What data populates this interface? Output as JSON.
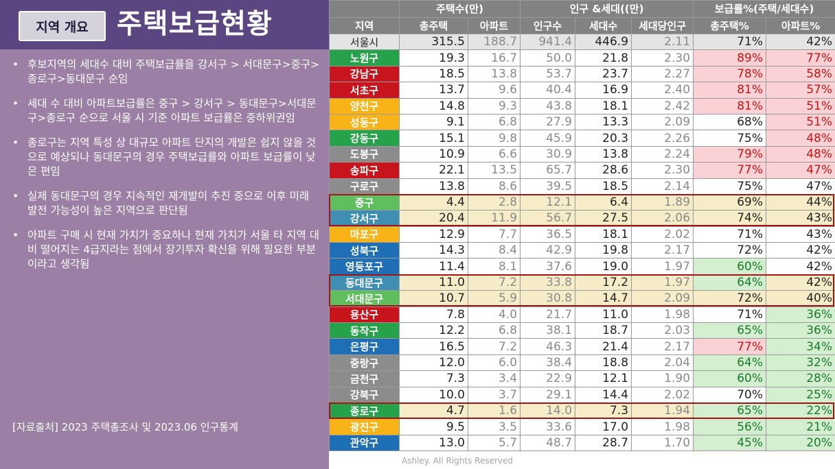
{
  "header": {
    "badge": "지역 개요",
    "title": "주택보급현황"
  },
  "bullets": [
    "후보지역의 세대수 대비 주택보급률을 강서구 > 서대문구>중구>종로구>동대문구 순임",
    "세대 수 대비 아파트보급률은 중구 > 강서구 > 동대문구>서대문구>종로구 순으로 서울 시 기준 아파트 보급률은 중하위권임",
    "종로구는 지역 특성 상 대규모 아파트 단지의 개발은 쉽지 않을 것으로 예상되나 동대문구의 경우 주택보급률와 아파트 보급률이 낮은 편임",
    "실제 동대문구의 경우 지속적인 재개발이 추진 중으로 이후 미래 발전 가능성이 높은 지역으로 판단됨",
    "아파트 구매 시 현재 가치가 중요하나 현재 가치가 서울 타 지역 대비 떨어지는 4급지라는 점에서 장기투자 확신을 위해 필요한 부분이라고 생각됨"
  ],
  "bullet_mark": "•",
  "source": "[자료출처] 2023 주택총조사 및 2023.06 인구통계",
  "watermark": "Ashley. All Rights Reserved",
  "table": {
    "groups": [
      "주택수(만)",
      "인구 &세대((만)",
      "보급률%(주택/세대수)"
    ],
    "columns": [
      "지역",
      "총주택",
      "아파트",
      "인구수",
      "세대수",
      "세대당인구",
      "총주택%",
      "아파트%"
    ],
    "rows": [
      {
        "region": "서울시",
        "color": "#e4e4e4",
        "v": [
          "315.5",
          "188.7",
          "941.4",
          "446.9",
          "2.11",
          "71%",
          "42%"
        ],
        "h": "",
        "t": "",
        "a": ""
      },
      {
        "region": "노원구",
        "color": "#25a24a",
        "v": [
          "19.3",
          "16.7",
          "50.0",
          "21.8",
          "2.30",
          "89%",
          "77%"
        ],
        "h": "",
        "t": "p",
        "a": "p"
      },
      {
        "region": "강남구",
        "color": "#c8141c",
        "v": [
          "18.5",
          "13.8",
          "53.7",
          "23.7",
          "2.27",
          "78%",
          "58%"
        ],
        "h": "",
        "t": "p",
        "a": "p"
      },
      {
        "region": "서초구",
        "color": "#c8141c",
        "v": [
          "13.7",
          "9.6",
          "40.4",
          "16.9",
          "2.40",
          "81%",
          "57%"
        ],
        "h": "",
        "t": "p",
        "a": "p"
      },
      {
        "region": "양천구",
        "color": "#f8b417",
        "v": [
          "14.8",
          "9.3",
          "43.8",
          "18.1",
          "2.42",
          "81%",
          "51%"
        ],
        "h": "",
        "t": "p",
        "a": "p"
      },
      {
        "region": "성동구",
        "color": "#f8b417",
        "v": [
          "9.1",
          "6.8",
          "27.9",
          "13.3",
          "2.09",
          "68%",
          "51%"
        ],
        "h": "",
        "t": "",
        "a": "p"
      },
      {
        "region": "강동구",
        "color": "#25a24a",
        "v": [
          "15.1",
          "9.8",
          "45.9",
          "20.3",
          "2.26",
          "75%",
          "48%"
        ],
        "h": "",
        "t": "",
        "a": "p"
      },
      {
        "region": "도봉구",
        "color": "#8c8c8c",
        "v": [
          "10.9",
          "6.6",
          "30.9",
          "13.8",
          "2.24",
          "79%",
          "48%"
        ],
        "h": "",
        "t": "p",
        "a": "p"
      },
      {
        "region": "송파구",
        "color": "#c8141c",
        "v": [
          "22.1",
          "13.5",
          "65.7",
          "28.6",
          "2.30",
          "77%",
          "47%"
        ],
        "h": "",
        "t": "p",
        "a": "p"
      },
      {
        "region": "구로구",
        "color": "#8c8c8c",
        "v": [
          "13.8",
          "8.6",
          "39.5",
          "18.5",
          "2.14",
          "75%",
          "47%"
        ],
        "h": "",
        "t": "",
        "a": ""
      },
      {
        "region": "중구",
        "color": "#5fbf5f",
        "v": [
          "4.4",
          "2.8",
          "12.1",
          "6.4",
          "1.89",
          "69%",
          "44%"
        ],
        "h": "1",
        "t": "",
        "a": ""
      },
      {
        "region": "강서구",
        "color": "#3f8fb3",
        "v": [
          "20.4",
          "11.9",
          "56.7",
          "27.5",
          "2.06",
          "74%",
          "43%"
        ],
        "h": "1",
        "t": "",
        "a": ""
      },
      {
        "region": "마포구",
        "color": "#f8b417",
        "v": [
          "12.9",
          "7.7",
          "36.5",
          "18.1",
          "2.02",
          "71%",
          "43%"
        ],
        "h": "",
        "t": "",
        "a": ""
      },
      {
        "region": "성북구",
        "color": "#1f6fb7",
        "v": [
          "14.3",
          "8.4",
          "42.9",
          "19.8",
          "2.17",
          "72%",
          "42%"
        ],
        "h": "",
        "t": "",
        "a": ""
      },
      {
        "region": "영등포구",
        "color": "#1f6fb7",
        "v": [
          "11.4",
          "8.1",
          "37.6",
          "19.0",
          "1.97",
          "60%",
          "42%"
        ],
        "h": "",
        "t": "g",
        "a": ""
      },
      {
        "region": "동대문구",
        "color": "#3f8fb3",
        "v": [
          "11.0",
          "7.2",
          "33.8",
          "17.2",
          "1.97",
          "64%",
          "42%"
        ],
        "h": "1",
        "t": "g",
        "a": ""
      },
      {
        "region": "서대문구",
        "color": "#5fbf5f",
        "v": [
          "10.7",
          "5.9",
          "30.8",
          "14.7",
          "2.09",
          "72%",
          "40%"
        ],
        "h": "1",
        "t": "",
        "a": ""
      },
      {
        "region": "용산구",
        "color": "#c8141c",
        "v": [
          "7.8",
          "4.0",
          "21.7",
          "11.0",
          "1.98",
          "71%",
          "36%"
        ],
        "h": "",
        "t": "",
        "a": "g"
      },
      {
        "region": "동작구",
        "color": "#25a24a",
        "v": [
          "12.2",
          "6.8",
          "38.1",
          "18.7",
          "2.03",
          "65%",
          "36%"
        ],
        "h": "",
        "t": "g",
        "a": "g"
      },
      {
        "region": "은평구",
        "color": "#1f6fb7",
        "v": [
          "16.5",
          "7.2",
          "46.3",
          "21.4",
          "2.17",
          "77%",
          "34%"
        ],
        "h": "",
        "t": "p",
        "a": "g"
      },
      {
        "region": "중랑구",
        "color": "#8c8c8c",
        "v": [
          "12.0",
          "6.0",
          "38.4",
          "18.8",
          "2.04",
          "64%",
          "32%"
        ],
        "h": "",
        "t": "g",
        "a": "g"
      },
      {
        "region": "금천구",
        "color": "#8c8c8c",
        "v": [
          "7.3",
          "3.4",
          "22.9",
          "12.1",
          "1.90",
          "60%",
          "28%"
        ],
        "h": "",
        "t": "g",
        "a": "g"
      },
      {
        "region": "강북구",
        "color": "#8c8c8c",
        "v": [
          "10.0",
          "3.7",
          "29.1",
          "14.4",
          "2.02",
          "70%",
          "25%"
        ],
        "h": "",
        "t": "",
        "a": "g"
      },
      {
        "region": "종로구",
        "color": "#25a24a",
        "v": [
          "4.7",
          "1.6",
          "14.0",
          "7.3",
          "1.94",
          "65%",
          "22%"
        ],
        "h": "1",
        "t": "g",
        "a": "g"
      },
      {
        "region": "광진구",
        "color": "#f8b417",
        "v": [
          "9.5",
          "3.5",
          "33.6",
          "17.0",
          "1.98",
          "56%",
          "21%"
        ],
        "h": "",
        "t": "g",
        "a": "g"
      },
      {
        "region": "관악구",
        "color": "#1f6fb7",
        "v": [
          "13.0",
          "5.7",
          "48.7",
          "28.7",
          "1.70",
          "45%",
          "20%"
        ],
        "h": "",
        "t": "g",
        "a": "g"
      }
    ]
  }
}
